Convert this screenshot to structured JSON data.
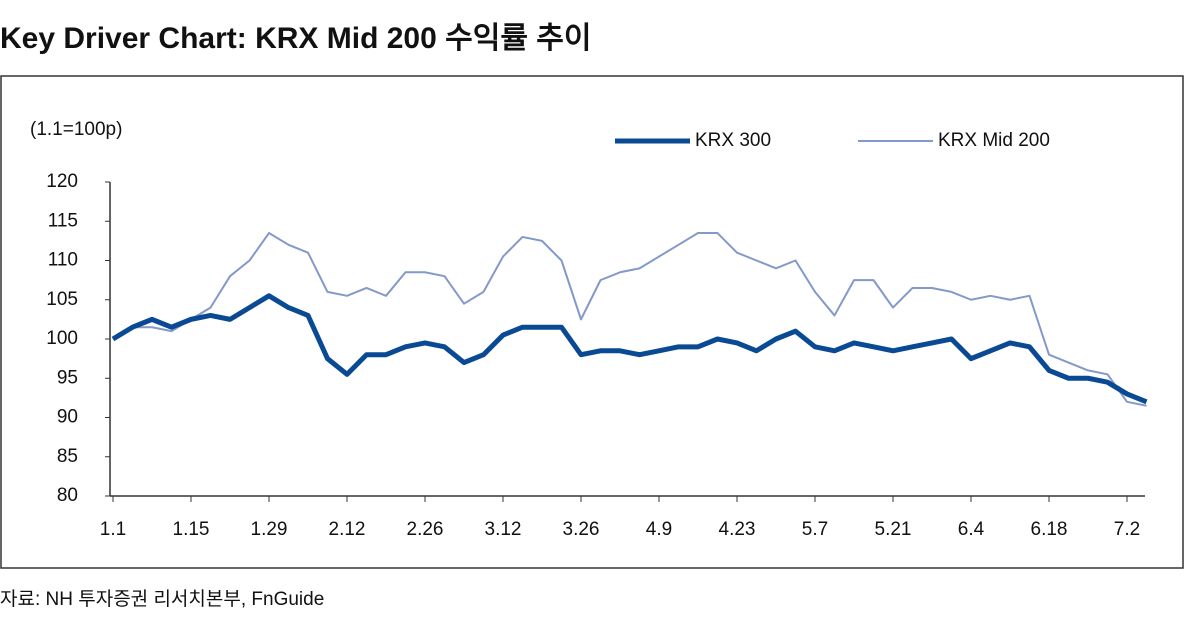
{
  "chart_data": {
    "type": "line",
    "title": "Key Driver Chart: KRX Mid 200 수익률 추이",
    "unit_label": "(1.1=100p)",
    "source": "자료: NH 투자증권 리서치본부, FnGuide",
    "categories": [
      "1.1",
      null,
      null,
      null,
      "1.15",
      null,
      null,
      null,
      "1.29",
      null,
      null,
      null,
      "2.12",
      null,
      null,
      null,
      "2.26",
      null,
      null,
      null,
      "3.12",
      null,
      null,
      null,
      "3.26",
      null,
      null,
      null,
      "4.9",
      null,
      null,
      null,
      "4.23",
      null,
      null,
      null,
      "5.7",
      null,
      null,
      null,
      "5.21",
      null,
      null,
      null,
      "6.4",
      null,
      null,
      null,
      "6.18",
      null,
      null,
      null,
      "7.2",
      null
    ],
    "series": [
      {
        "name": "KRX 300",
        "color": "#0a4a95",
        "width": 5,
        "values": [
          100,
          101.5,
          102.5,
          101.5,
          102.5,
          103,
          102.5,
          104,
          105.5,
          104,
          103,
          97.5,
          95.5,
          98,
          98,
          99,
          99.5,
          99,
          97,
          98,
          100.5,
          101.5,
          101.5,
          101.5,
          98,
          98.5,
          98.5,
          98,
          98.5,
          99,
          99,
          100,
          99.5,
          98.5,
          100,
          101,
          99,
          98.5,
          99.5,
          99,
          98.5,
          99,
          99.5,
          100,
          97.5,
          98.5,
          99.5,
          99,
          96,
          95,
          95,
          94.5,
          93,
          92
        ]
      },
      {
        "name": "KRX Mid 200",
        "color": "#8299c9",
        "width": 2,
        "values": [
          100,
          101.5,
          101.5,
          101,
          102.5,
          104,
          108,
          110,
          113.5,
          112,
          111,
          106,
          105.5,
          106.5,
          105.5,
          108.5,
          108.5,
          108,
          104.5,
          106,
          110.5,
          113,
          112.5,
          110,
          102.5,
          107.5,
          108.5,
          109,
          110.5,
          112,
          113.5,
          113.5,
          111,
          110,
          109,
          110,
          106,
          103,
          107.5,
          107.5,
          104,
          106.5,
          106.5,
          106,
          105,
          105.5,
          105,
          105.5,
          98,
          97,
          96,
          95.5,
          92,
          91.5
        ]
      }
    ],
    "ylim": [
      80,
      120
    ],
    "yticks": [
      80,
      85,
      90,
      95,
      100,
      105,
      110,
      115,
      120
    ]
  }
}
